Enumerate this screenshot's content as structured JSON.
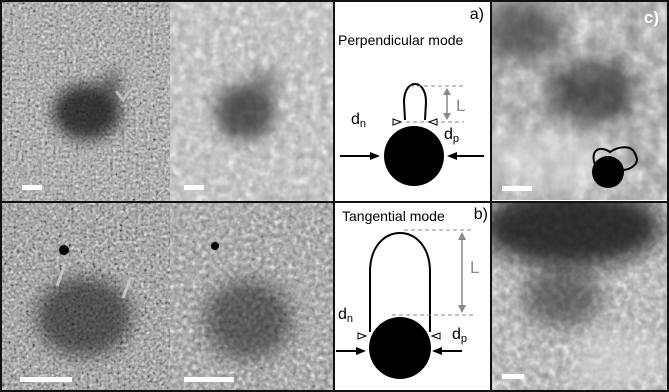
{
  "panel_a": {
    "letter": "a)",
    "title": "Perpendicular mode",
    "symbols": {
      "L": "L",
      "dn_base": "d",
      "dn_sub": "n",
      "dp_base": "d",
      "dp_sub": "p"
    }
  },
  "panel_b": {
    "letter": "b)",
    "title": "Tangential mode",
    "symbols": {
      "L": "L",
      "dn_base": "d",
      "dn_sub": "n",
      "dp_base": "d",
      "dp_sub": "p"
    }
  },
  "panel_c": {
    "letter": "c)"
  },
  "colors": {
    "dim_line": "#888888",
    "shape": "#000000",
    "background": "#ffffff"
  }
}
